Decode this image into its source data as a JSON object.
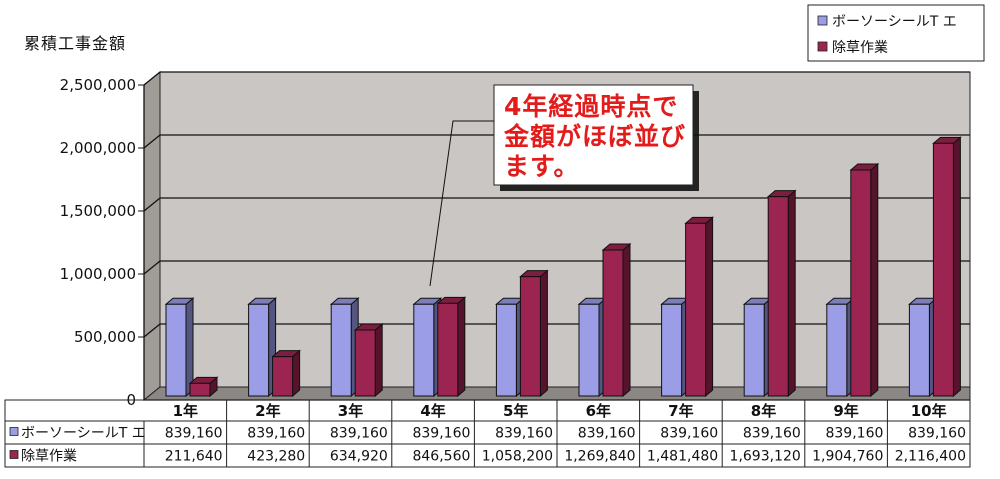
{
  "chart_data": {
    "type": "bar",
    "ylabel": "累積工事金額",
    "yticks": [
      "0",
      "500,000",
      "1,000,000",
      "1,500,000",
      "2,000,000",
      "2,500,000"
    ],
    "ylim": [
      0,
      2500000
    ],
    "grid": true,
    "legend_position": "top-right",
    "categories": [
      "1年",
      "2年",
      "3年",
      "4年",
      "5年",
      "6年",
      "7年",
      "8年",
      "9年",
      "10年"
    ],
    "series": [
      {
        "name": "ボーソーシールT エ",
        "color": "#9b9de6",
        "values": [
          839160,
          839160,
          839160,
          839160,
          839160,
          839160,
          839160,
          839160,
          839160,
          839160
        ],
        "labels": [
          "839,160",
          "839,160",
          "839,160",
          "839,160",
          "839,160",
          "839,160",
          "839,160",
          "839,160",
          "839,160",
          "839,160"
        ]
      },
      {
        "name": "除草作業",
        "color": "#9c2450",
        "values": [
          211640,
          423280,
          634920,
          846560,
          1058200,
          1269840,
          1481480,
          1693120,
          1904760,
          2116400
        ],
        "labels": [
          "211,640",
          "423,280",
          "634,920",
          "846,560",
          "1,058,200",
          "1,269,840",
          "1,481,480",
          "1,693,120",
          "1,904,760",
          "2,116,400"
        ]
      }
    ],
    "annotation": {
      "lines": [
        "4年経過時点で",
        "金額がほぼ並び",
        "ます。"
      ]
    }
  }
}
